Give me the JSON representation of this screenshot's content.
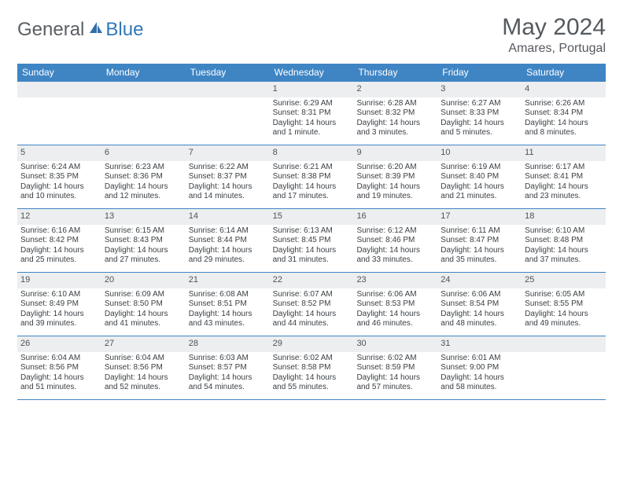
{
  "logo": {
    "general": "General",
    "blue": "Blue"
  },
  "title": "May 2024",
  "location": "Amares, Portugal",
  "colors": {
    "header_bar": "#3f85c4",
    "daynum_band": "#eceeef",
    "text": "#3a3f44",
    "logo_gray": "#5a5f64",
    "logo_blue": "#3178b8",
    "title_gray": "#555a5f",
    "background": "#ffffff"
  },
  "weekdays": [
    "Sunday",
    "Monday",
    "Tuesday",
    "Wednesday",
    "Thursday",
    "Friday",
    "Saturday"
  ],
  "weeks": [
    [
      null,
      null,
      null,
      {
        "n": "1",
        "sr": "Sunrise: 6:29 AM",
        "ss": "Sunset: 8:31 PM",
        "dl": "Daylight: 14 hours and 1 minute."
      },
      {
        "n": "2",
        "sr": "Sunrise: 6:28 AM",
        "ss": "Sunset: 8:32 PM",
        "dl": "Daylight: 14 hours and 3 minutes."
      },
      {
        "n": "3",
        "sr": "Sunrise: 6:27 AM",
        "ss": "Sunset: 8:33 PM",
        "dl": "Daylight: 14 hours and 5 minutes."
      },
      {
        "n": "4",
        "sr": "Sunrise: 6:26 AM",
        "ss": "Sunset: 8:34 PM",
        "dl": "Daylight: 14 hours and 8 minutes."
      }
    ],
    [
      {
        "n": "5",
        "sr": "Sunrise: 6:24 AM",
        "ss": "Sunset: 8:35 PM",
        "dl": "Daylight: 14 hours and 10 minutes."
      },
      {
        "n": "6",
        "sr": "Sunrise: 6:23 AM",
        "ss": "Sunset: 8:36 PM",
        "dl": "Daylight: 14 hours and 12 minutes."
      },
      {
        "n": "7",
        "sr": "Sunrise: 6:22 AM",
        "ss": "Sunset: 8:37 PM",
        "dl": "Daylight: 14 hours and 14 minutes."
      },
      {
        "n": "8",
        "sr": "Sunrise: 6:21 AM",
        "ss": "Sunset: 8:38 PM",
        "dl": "Daylight: 14 hours and 17 minutes."
      },
      {
        "n": "9",
        "sr": "Sunrise: 6:20 AM",
        "ss": "Sunset: 8:39 PM",
        "dl": "Daylight: 14 hours and 19 minutes."
      },
      {
        "n": "10",
        "sr": "Sunrise: 6:19 AM",
        "ss": "Sunset: 8:40 PM",
        "dl": "Daylight: 14 hours and 21 minutes."
      },
      {
        "n": "11",
        "sr": "Sunrise: 6:17 AM",
        "ss": "Sunset: 8:41 PM",
        "dl": "Daylight: 14 hours and 23 minutes."
      }
    ],
    [
      {
        "n": "12",
        "sr": "Sunrise: 6:16 AM",
        "ss": "Sunset: 8:42 PM",
        "dl": "Daylight: 14 hours and 25 minutes."
      },
      {
        "n": "13",
        "sr": "Sunrise: 6:15 AM",
        "ss": "Sunset: 8:43 PM",
        "dl": "Daylight: 14 hours and 27 minutes."
      },
      {
        "n": "14",
        "sr": "Sunrise: 6:14 AM",
        "ss": "Sunset: 8:44 PM",
        "dl": "Daylight: 14 hours and 29 minutes."
      },
      {
        "n": "15",
        "sr": "Sunrise: 6:13 AM",
        "ss": "Sunset: 8:45 PM",
        "dl": "Daylight: 14 hours and 31 minutes."
      },
      {
        "n": "16",
        "sr": "Sunrise: 6:12 AM",
        "ss": "Sunset: 8:46 PM",
        "dl": "Daylight: 14 hours and 33 minutes."
      },
      {
        "n": "17",
        "sr": "Sunrise: 6:11 AM",
        "ss": "Sunset: 8:47 PM",
        "dl": "Daylight: 14 hours and 35 minutes."
      },
      {
        "n": "18",
        "sr": "Sunrise: 6:10 AM",
        "ss": "Sunset: 8:48 PM",
        "dl": "Daylight: 14 hours and 37 minutes."
      }
    ],
    [
      {
        "n": "19",
        "sr": "Sunrise: 6:10 AM",
        "ss": "Sunset: 8:49 PM",
        "dl": "Daylight: 14 hours and 39 minutes."
      },
      {
        "n": "20",
        "sr": "Sunrise: 6:09 AM",
        "ss": "Sunset: 8:50 PM",
        "dl": "Daylight: 14 hours and 41 minutes."
      },
      {
        "n": "21",
        "sr": "Sunrise: 6:08 AM",
        "ss": "Sunset: 8:51 PM",
        "dl": "Daylight: 14 hours and 43 minutes."
      },
      {
        "n": "22",
        "sr": "Sunrise: 6:07 AM",
        "ss": "Sunset: 8:52 PM",
        "dl": "Daylight: 14 hours and 44 minutes."
      },
      {
        "n": "23",
        "sr": "Sunrise: 6:06 AM",
        "ss": "Sunset: 8:53 PM",
        "dl": "Daylight: 14 hours and 46 minutes."
      },
      {
        "n": "24",
        "sr": "Sunrise: 6:06 AM",
        "ss": "Sunset: 8:54 PM",
        "dl": "Daylight: 14 hours and 48 minutes."
      },
      {
        "n": "25",
        "sr": "Sunrise: 6:05 AM",
        "ss": "Sunset: 8:55 PM",
        "dl": "Daylight: 14 hours and 49 minutes."
      }
    ],
    [
      {
        "n": "26",
        "sr": "Sunrise: 6:04 AM",
        "ss": "Sunset: 8:56 PM",
        "dl": "Daylight: 14 hours and 51 minutes."
      },
      {
        "n": "27",
        "sr": "Sunrise: 6:04 AM",
        "ss": "Sunset: 8:56 PM",
        "dl": "Daylight: 14 hours and 52 minutes."
      },
      {
        "n": "28",
        "sr": "Sunrise: 6:03 AM",
        "ss": "Sunset: 8:57 PM",
        "dl": "Daylight: 14 hours and 54 minutes."
      },
      {
        "n": "29",
        "sr": "Sunrise: 6:02 AM",
        "ss": "Sunset: 8:58 PM",
        "dl": "Daylight: 14 hours and 55 minutes."
      },
      {
        "n": "30",
        "sr": "Sunrise: 6:02 AM",
        "ss": "Sunset: 8:59 PM",
        "dl": "Daylight: 14 hours and 57 minutes."
      },
      {
        "n": "31",
        "sr": "Sunrise: 6:01 AM",
        "ss": "Sunset: 9:00 PM",
        "dl": "Daylight: 14 hours and 58 minutes."
      },
      null
    ]
  ]
}
